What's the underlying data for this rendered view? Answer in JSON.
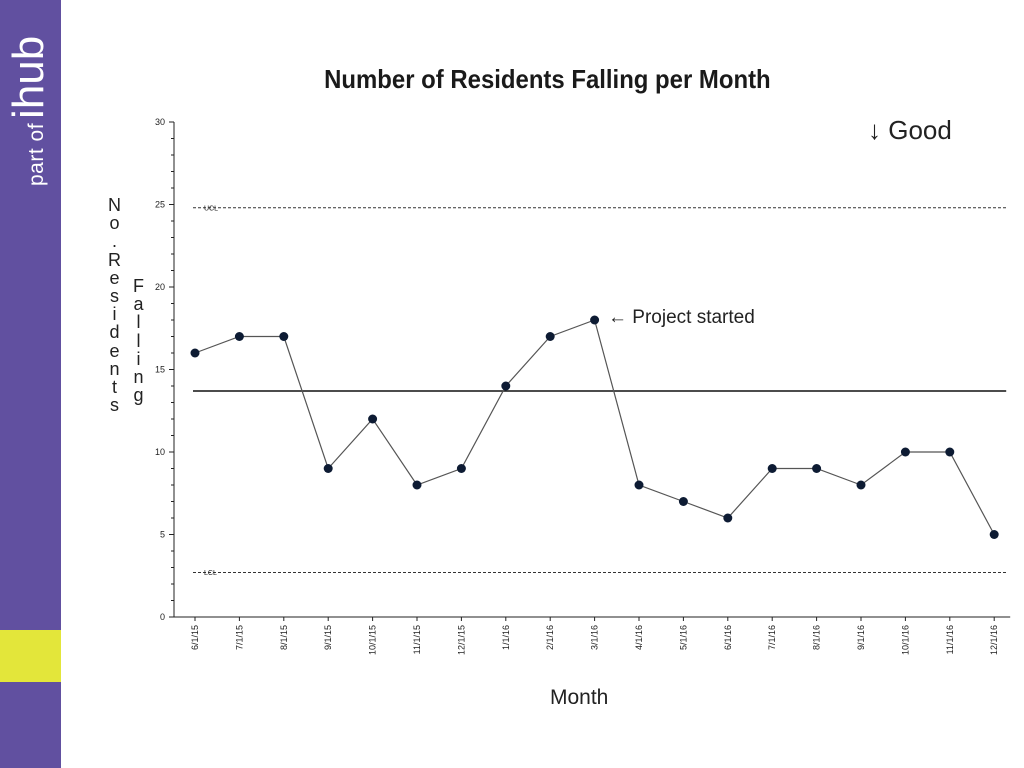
{
  "brand": {
    "prefix": "part of",
    "name": "ihub"
  },
  "colors": {
    "sidebar": "#6150a0",
    "accent": "#e3e63a",
    "line": "#555555",
    "marker": "#0d1b33"
  },
  "chart_data": {
    "type": "line",
    "title": "Number of Residents Falling per Month",
    "xlabel": "Month",
    "ylabel": "No. Residents Falling",
    "ylim": [
      0,
      30
    ],
    "yticks": [
      0,
      5,
      10,
      15,
      20,
      25,
      30
    ],
    "categories": [
      "6/1/15",
      "7/1/15",
      "8/1/15",
      "9/1/15",
      "10/1/15",
      "11/1/15",
      "12/1/15",
      "1/1/16",
      "2/1/16",
      "3/1/16",
      "4/1/16",
      "5/1/16",
      "6/1/16",
      "7/1/16",
      "8/1/16",
      "9/1/16",
      "10/1/16",
      "11/1/16",
      "12/1/16"
    ],
    "series": [
      {
        "values": [
          16,
          17,
          17,
          9,
          12,
          8,
          9,
          14,
          17,
          18,
          8,
          7,
          6,
          9,
          9,
          8,
          10,
          10,
          5
        ]
      }
    ],
    "reference_lines": [
      {
        "label": "UCL",
        "value": 24.8,
        "style": "dashed"
      },
      {
        "value": 13.7,
        "style": "solid"
      },
      {
        "label": "LCL",
        "value": 2.7,
        "style": "dashed"
      }
    ],
    "annotations": [
      {
        "text": "← Project started",
        "category": "3/1/16"
      },
      {
        "text": "↓ Good"
      }
    ],
    "grid": false,
    "legend": "none"
  }
}
